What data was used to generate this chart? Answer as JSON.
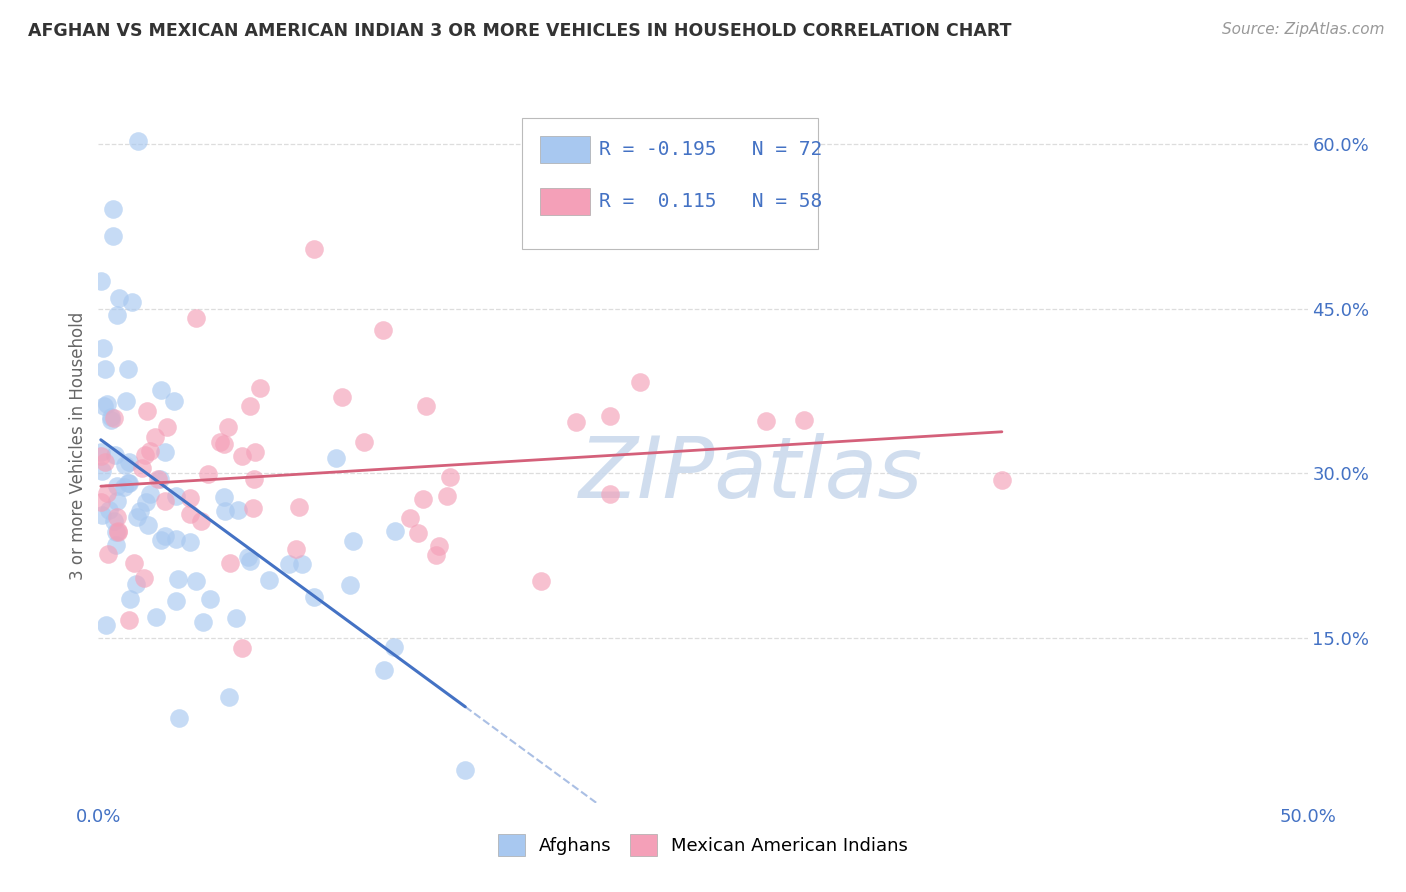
{
  "title": "AFGHAN VS MEXICAN AMERICAN INDIAN 3 OR MORE VEHICLES IN HOUSEHOLD CORRELATION CHART",
  "source": "Source: ZipAtlas.com",
  "ylabel": "3 or more Vehicles in Household",
  "xlim": [
    0.0,
    0.5
  ],
  "ylim": [
    0.0,
    0.65
  ],
  "yticks": [
    0.15,
    0.3,
    0.45,
    0.6
  ],
  "ytick_labels": [
    "15.0%",
    "30.0%",
    "45.0%",
    "60.0%"
  ],
  "xtick_left_label": "0.0%",
  "xtick_right_label": "50.0%",
  "legend_labels": [
    "Afghans",
    "Mexican American Indians"
  ],
  "blue_color": "#A8C8F0",
  "pink_color": "#F4A0B8",
  "blue_line_color": "#4472C4",
  "pink_line_color": "#D4607A",
  "axis_color": "#4472C4",
  "watermark": "ZIPatlas",
  "watermark_color": "#C8D8EC",
  "grid_color": "#DDDDDD",
  "blue_R": -0.195,
  "blue_N": 72,
  "pink_R": 0.115,
  "pink_N": 58
}
